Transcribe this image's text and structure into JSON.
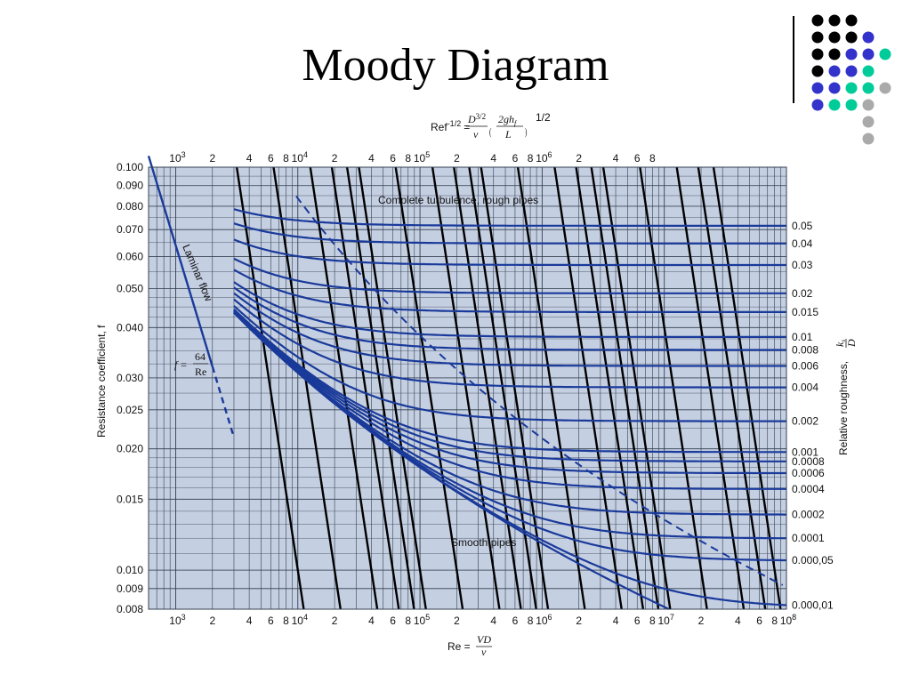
{
  "slide": {
    "title": "Moody Diagram"
  },
  "decoration": {
    "dot_colors": [
      "#000000",
      "#3333cc",
      "#00cc99",
      "#aaaaaa"
    ],
    "dot_rows": [
      [
        0,
        0,
        0,
        null,
        null
      ],
      [
        0,
        0,
        0,
        1,
        null
      ],
      [
        0,
        0,
        1,
        1,
        2
      ],
      [
        0,
        1,
        1,
        2,
        null
      ],
      [
        1,
        1,
        2,
        2,
        3
      ],
      [
        1,
        2,
        2,
        3,
        null
      ],
      [
        null,
        null,
        null,
        3,
        null
      ],
      [
        null,
        null,
        null,
        3,
        null
      ]
    ]
  },
  "colors": {
    "plot_bg": "#c5cfe2",
    "curve": "#1a3a9a",
    "grid": "#33404f",
    "re_lines": "#000000"
  },
  "chart_data": {
    "type": "line",
    "top_formula": {
      "lhs": "Ref",
      "lhs_sup": "-1/2",
      "eq": "=",
      "frac1_num": "D",
      "frac1_num_sup": "3/2",
      "frac1_den": "ν",
      "frac2_num": "2gh",
      "frac2_num_sub": "f",
      "frac2_den": "L",
      "outer_sup": "1/2"
    },
    "bottom_formula": {
      "lhs": "Re =",
      "num": "VD",
      "den": "ν"
    },
    "xlabel_formula": "Re = VD/ν",
    "ylabel": "Resistance coefficient, f",
    "right_label": "Relative roughness,",
    "right_label_num": "k",
    "right_label_num_sub": "s",
    "right_label_den": "D",
    "x_scale": "log",
    "y_scale": "log",
    "xlim": [
      600,
      100000000
    ],
    "ylim": [
      0.008,
      0.1
    ],
    "grid": true,
    "y_tick_labels": [
      {
        "value": 0.1,
        "text": "0.100"
      },
      {
        "value": 0.09,
        "text": "0.090"
      },
      {
        "value": 0.08,
        "text": "0.080"
      },
      {
        "value": 0.07,
        "text": "0.070"
      },
      {
        "value": 0.06,
        "text": "0.060"
      },
      {
        "value": 0.05,
        "text": "0.050"
      },
      {
        "value": 0.04,
        "text": "0.040"
      },
      {
        "value": 0.03,
        "text": "0.030"
      },
      {
        "value": 0.025,
        "text": "0.025"
      },
      {
        "value": 0.02,
        "text": "0.020"
      },
      {
        "value": 0.015,
        "text": "0.015"
      },
      {
        "value": 0.01,
        "text": "0.010"
      },
      {
        "value": 0.009,
        "text": "0.009"
      },
      {
        "value": 0.008,
        "text": "0.008"
      }
    ],
    "bottom_ticks": [
      {
        "value": 1000,
        "m": "10",
        "e": "3"
      },
      {
        "value": 2000,
        "m": "2"
      },
      {
        "value": 4000,
        "m": "4"
      },
      {
        "value": 6000,
        "m": "6"
      },
      {
        "value": 8000,
        "m": "8"
      },
      {
        "value": 10000,
        "m": "10",
        "e": "4"
      },
      {
        "value": 20000,
        "m": "2"
      },
      {
        "value": 40000,
        "m": "4"
      },
      {
        "value": 60000,
        "m": "6"
      },
      {
        "value": 80000,
        "m": "8"
      },
      {
        "value": 100000,
        "m": "10",
        "e": "5"
      },
      {
        "value": 200000,
        "m": "2"
      },
      {
        "value": 400000,
        "m": "4"
      },
      {
        "value": 600000,
        "m": "6"
      },
      {
        "value": 800000,
        "m": "8"
      },
      {
        "value": 1000000,
        "m": "10",
        "e": "6"
      },
      {
        "value": 2000000,
        "m": "2"
      },
      {
        "value": 4000000,
        "m": "4"
      },
      {
        "value": 6000000,
        "m": "6"
      },
      {
        "value": 8000000,
        "m": "8"
      },
      {
        "value": 10000000,
        "m": "10",
        "e": "7"
      },
      {
        "value": 20000000,
        "m": "2"
      },
      {
        "value": 40000000,
        "m": "4"
      },
      {
        "value": 60000000,
        "m": "6"
      },
      {
        "value": 80000000,
        "m": "8"
      },
      {
        "value": 100000000,
        "m": "10",
        "e": "8"
      }
    ],
    "top_ticks": [
      {
        "value": 1000,
        "m": "10",
        "e": "3"
      },
      {
        "value": 2000,
        "m": "2"
      },
      {
        "value": 4000,
        "m": "4"
      },
      {
        "value": 6000,
        "m": "6"
      },
      {
        "value": 8000,
        "m": "8"
      },
      {
        "value": 10000,
        "m": "10",
        "e": "4"
      },
      {
        "value": 20000,
        "m": "2"
      },
      {
        "value": 40000,
        "m": "4"
      },
      {
        "value": 60000,
        "m": "6"
      },
      {
        "value": 80000,
        "m": "8"
      },
      {
        "value": 100000,
        "m": "10",
        "e": "5"
      },
      {
        "value": 200000,
        "m": "2"
      },
      {
        "value": 400000,
        "m": "4"
      },
      {
        "value": 600000,
        "m": "6"
      },
      {
        "value": 800000,
        "m": "8"
      },
      {
        "value": 1000000,
        "m": "10",
        "e": "6"
      },
      {
        "value": 2000000,
        "m": "2"
      },
      {
        "value": 4000000,
        "m": "4"
      },
      {
        "value": 6000000,
        "m": "6"
      },
      {
        "value": 8000000,
        "m": "8"
      }
    ],
    "roughness_series": [
      {
        "label": "0.05",
        "eps": 0.05
      },
      {
        "label": "0.04",
        "eps": 0.04
      },
      {
        "label": "0.03",
        "eps": 0.03
      },
      {
        "label": "0.02",
        "eps": 0.02
      },
      {
        "label": "0.015",
        "eps": 0.015
      },
      {
        "label": "0.01",
        "eps": 0.01
      },
      {
        "label": "0.008",
        "eps": 0.008
      },
      {
        "label": "0.006",
        "eps": 0.006
      },
      {
        "label": "0.004",
        "eps": 0.004
      },
      {
        "label": "0.002",
        "eps": 0.002
      },
      {
        "label": "0.001",
        "eps": 0.001
      },
      {
        "label": "0.0008",
        "eps": 0.0008
      },
      {
        "label": "0.0006",
        "eps": 0.0006
      },
      {
        "label": "0.0004",
        "eps": 0.0004
      },
      {
        "label": "0.0002",
        "eps": 0.0002
      },
      {
        "label": "0.0001",
        "eps": 0.0001
      },
      {
        "label": "0.000,05",
        "eps": 5e-05
      },
      {
        "label": "0.000,01",
        "eps": 1e-05
      }
    ],
    "smooth_pipes": {
      "label": "Smooth pipes",
      "eps": 0
    },
    "laminar": {
      "label": "Laminar flow",
      "formula_lhs": "f =",
      "formula_num": "64",
      "formula_den": "Re",
      "re_range_solid": [
        600,
        2000
      ],
      "re_range_dashed": [
        2000,
        3000
      ]
    },
    "complete_turbulence": {
      "label": "Complete turbulence, rough pipes",
      "style": "dashed"
    },
    "re_f_half_values": [
      1000,
      2000,
      4000,
      6000,
      8000,
      10000,
      20000,
      40000,
      60000,
      80000,
      100000,
      200000,
      400000,
      600000,
      800000,
      1000000,
      2000000,
      4000000,
      6000000,
      8000000
    ]
  }
}
